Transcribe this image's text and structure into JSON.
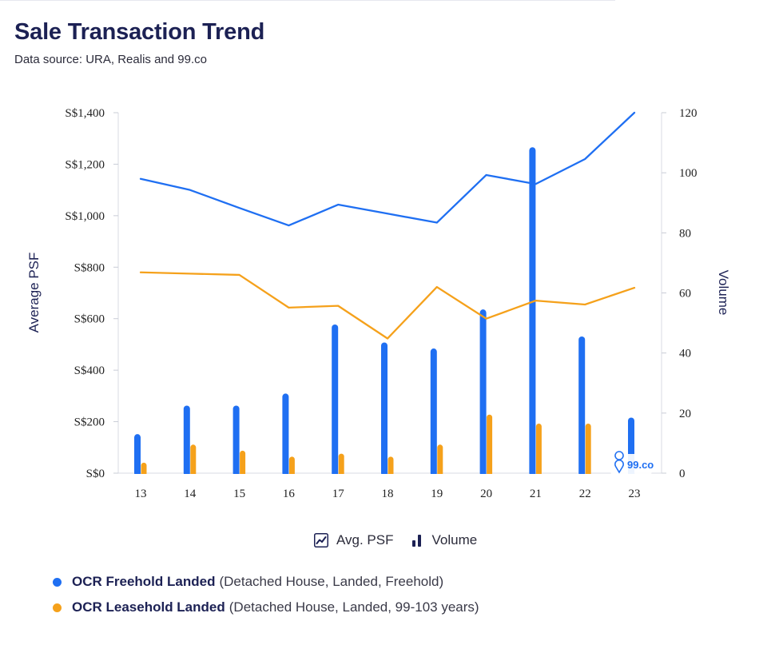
{
  "header": {
    "title": "Sale Transaction Trend",
    "subtitle": "Data source: URA, Realis and 99.co"
  },
  "watermark": "99.co",
  "toggle_legend": {
    "psf_label": "Avg. PSF",
    "volume_label": "Volume"
  },
  "series_legend": [
    {
      "name": "OCR Freehold Landed",
      "detail": "(Detached House, Landed, Freehold)",
      "color": "#1f6ff2"
    },
    {
      "name": "OCR Leasehold Landed",
      "detail": "(Detached House, Landed, 99-103 years)",
      "color": "#f5a11b"
    }
  ],
  "chart_data": {
    "type": "bar+line",
    "categories": [
      "13",
      "14",
      "15",
      "16",
      "17",
      "18",
      "19",
      "20",
      "21",
      "22",
      "23"
    ],
    "y_left": {
      "label": "Average PSF",
      "range": [
        0,
        1400
      ],
      "ticks": [
        "S$0",
        "S$200",
        "S$400",
        "S$600",
        "S$800",
        "S$1,000",
        "S$1,200",
        "S$1,400"
      ]
    },
    "y_right": {
      "label": "Volume",
      "range": [
        0,
        120
      ],
      "ticks": [
        "0",
        "20",
        "40",
        "60",
        "80",
        "100",
        "120"
      ]
    },
    "grid": false,
    "series": [
      {
        "name": "OCR Freehold Landed",
        "kind": "line",
        "axis": "left",
        "color": "#1f6ff2",
        "values": [
          1143,
          1100,
          1030,
          962,
          1043,
          1008,
          973,
          1158,
          1123,
          1220,
          1400
        ]
      },
      {
        "name": "OCR Leasehold Landed",
        "kind": "line",
        "axis": "left",
        "color": "#f5a11b",
        "values": [
          780,
          775,
          770,
          643,
          650,
          523,
          723,
          600,
          670,
          655,
          720
        ]
      },
      {
        "name": "OCR Freehold Landed",
        "kind": "bar",
        "axis": "right",
        "color": "#1f6ff2",
        "values": [
          13,
          22.5,
          22.5,
          26.5,
          49.5,
          43.5,
          41.5,
          54.5,
          108.5,
          45.5,
          18.5
        ]
      },
      {
        "name": "OCR Leasehold Landed",
        "kind": "bar",
        "axis": "right",
        "color": "#f5a11b",
        "values": [
          3.5,
          9.5,
          7.5,
          5.5,
          6.5,
          5.5,
          9.5,
          19.5,
          16.5,
          16.5,
          null
        ]
      }
    ]
  }
}
